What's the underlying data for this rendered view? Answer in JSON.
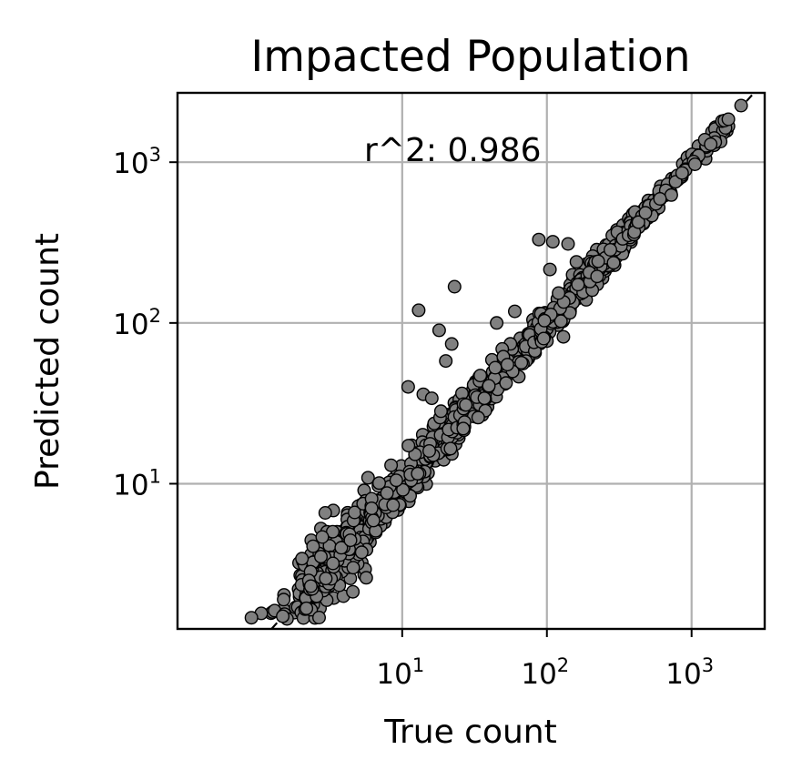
{
  "chart_data": {
    "type": "scatter",
    "title": "Impacted Population",
    "xlabel": "True count",
    "ylabel": "Predicted count",
    "xscale": "log",
    "yscale": "log",
    "xlim": [
      0.28,
      3200
    ],
    "ylim": [
      1.25,
      2700
    ],
    "x_ticks": [
      {
        "base": "10",
        "exp": "1",
        "value": 10
      },
      {
        "base": "10",
        "exp": "2",
        "value": 100
      },
      {
        "base": "10",
        "exp": "3",
        "value": 1000
      }
    ],
    "y_ticks": [
      {
        "base": "10",
        "exp": "1",
        "value": 10
      },
      {
        "base": "10",
        "exp": "2",
        "value": 100
      },
      {
        "base": "10",
        "exp": "3",
        "value": 1000
      }
    ],
    "grid": true,
    "reference_line": "y = x (dashed)",
    "annotation": "r^2: 0.986",
    "marker_color": "#808080",
    "marker_edge_color": "#000000",
    "outliers": [
      {
        "x": 13,
        "y": 120
      },
      {
        "x": 23,
        "y": 168
      },
      {
        "x": 18,
        "y": 90
      },
      {
        "x": 22,
        "y": 74
      },
      {
        "x": 20,
        "y": 58
      },
      {
        "x": 11,
        "y": 40
      },
      {
        "x": 14,
        "y": 36
      },
      {
        "x": 16,
        "y": 34
      },
      {
        "x": 88,
        "y": 330
      },
      {
        "x": 110,
        "y": 320
      },
      {
        "x": 140,
        "y": 310
      },
      {
        "x": 105,
        "y": 215
      },
      {
        "x": 160,
        "y": 240
      },
      {
        "x": 45,
        "y": 100
      },
      {
        "x": 60,
        "y": 118
      },
      {
        "x": 2200,
        "y": 2250
      },
      {
        "x": 95,
        "y": 80
      },
      {
        "x": 130,
        "y": 82
      }
    ],
    "bulk": [
      {
        "x0": 0.5,
        "x1": 2.0,
        "spread": 0.16,
        "n": 110
      },
      {
        "x0": 2.0,
        "x1": 6.0,
        "spread": 0.22,
        "n": 210
      },
      {
        "x0": 6.0,
        "x1": 25,
        "spread": 0.13,
        "n": 230
      },
      {
        "x0": 25,
        "x1": 90,
        "spread": 0.1,
        "n": 200
      },
      {
        "x0": 90,
        "x1": 400,
        "spread": 0.09,
        "n": 230
      },
      {
        "x0": 400,
        "x1": 1800,
        "spread": 0.06,
        "n": 120
      }
    ]
  }
}
